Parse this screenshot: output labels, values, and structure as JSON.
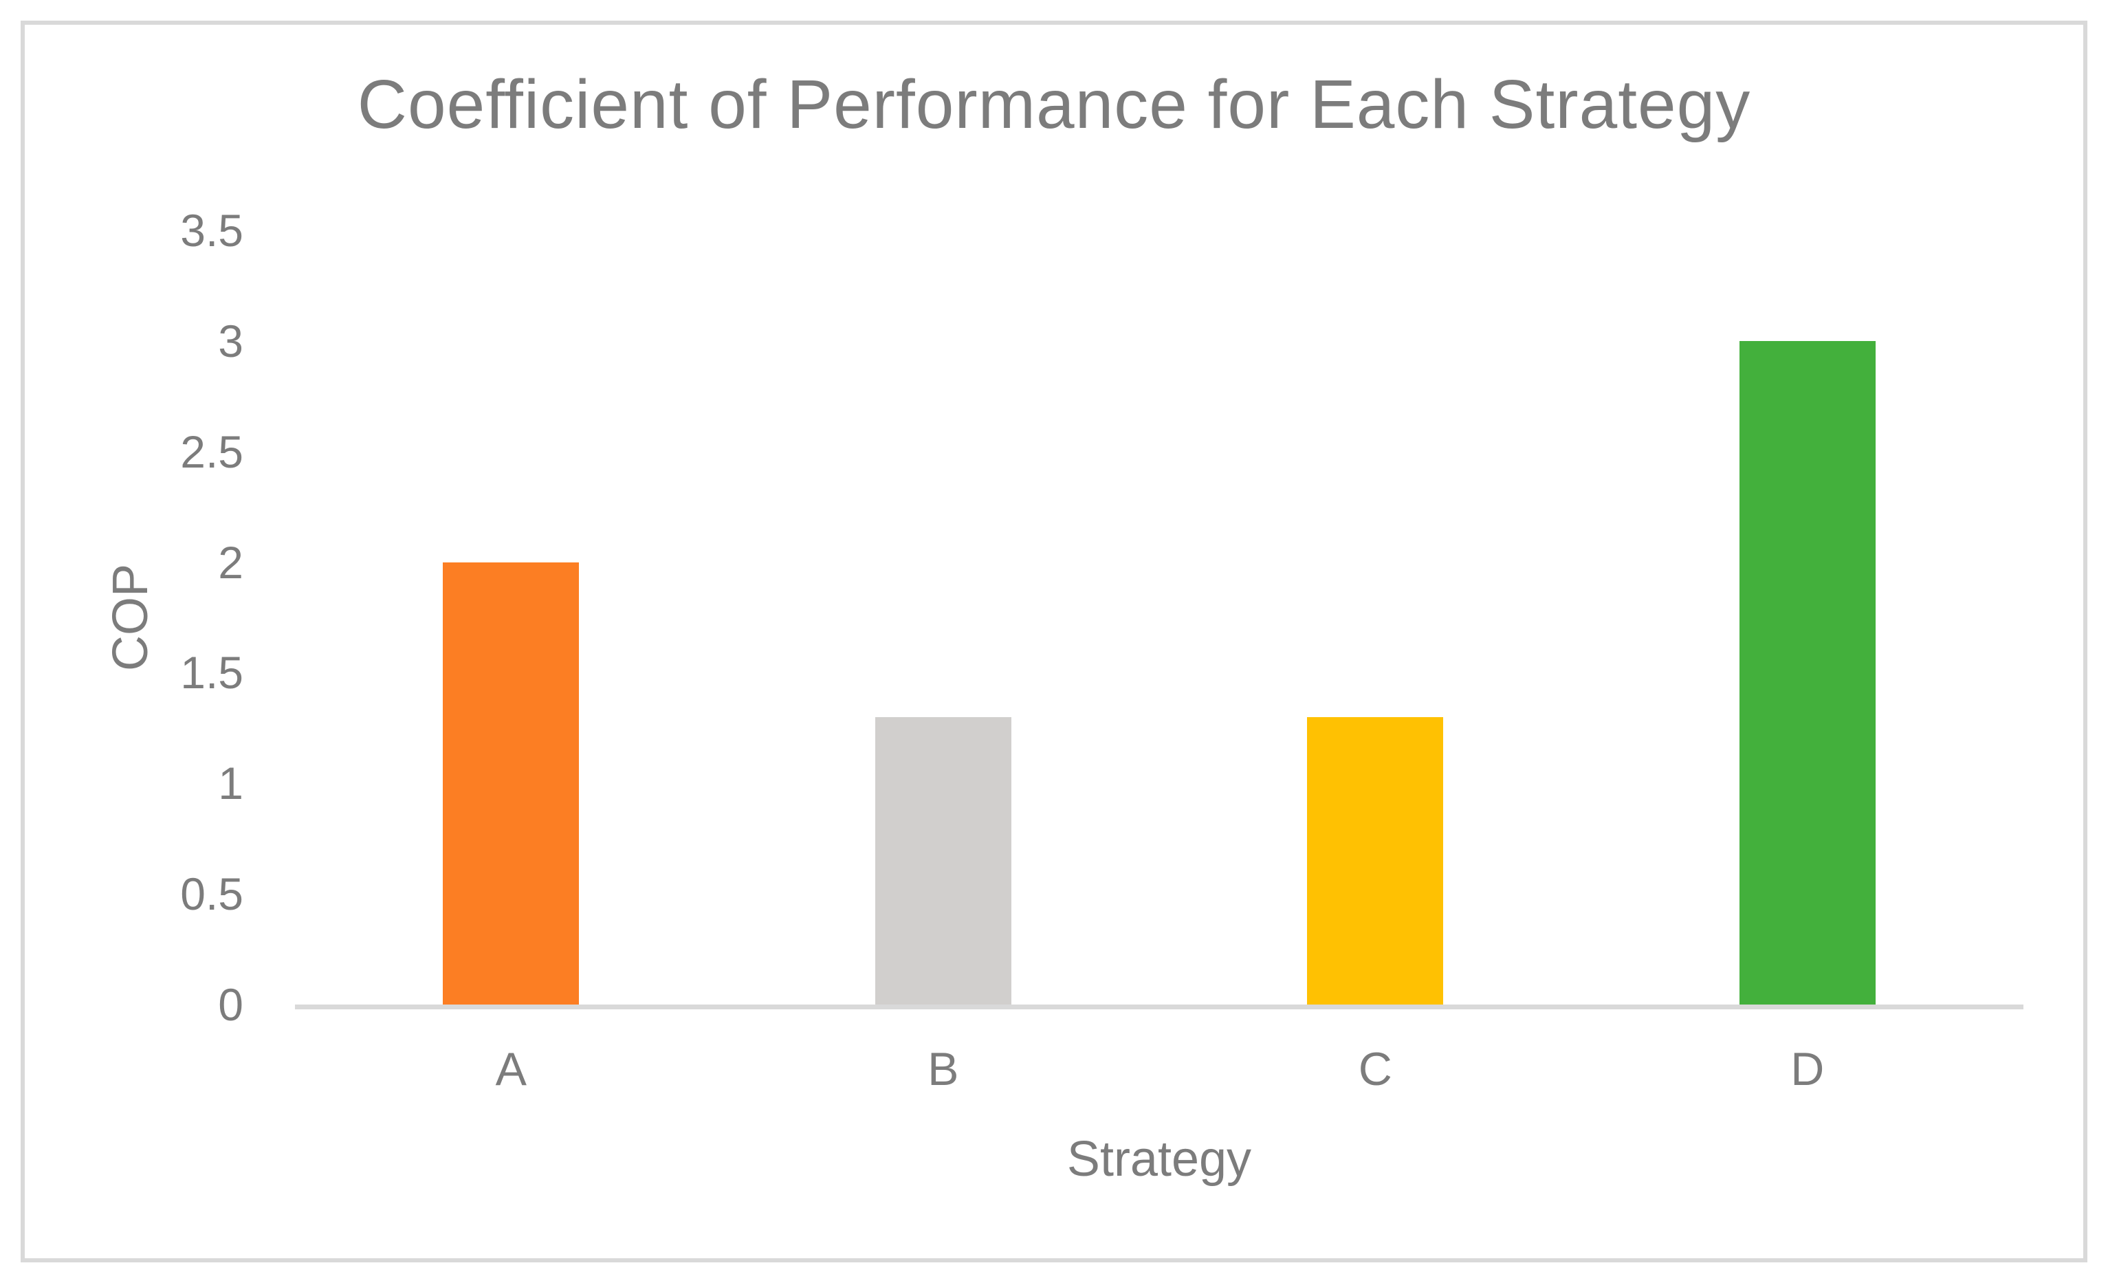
{
  "chart_data": {
    "type": "bar",
    "title": "Coefficient of Performance for Each Strategy",
    "xlabel": "Strategy",
    "ylabel": "COP",
    "categories": [
      "A",
      "B",
      "C",
      "D"
    ],
    "values": [
      2,
      1.3,
      1.3,
      3
    ],
    "bar_colors": [
      "#FC7E23",
      "#D1CFCD",
      "#FFC102",
      "#43B03C"
    ],
    "ylim": [
      0,
      3.5
    ],
    "ytick_step": 0.5,
    "ytick_labels": [
      "0",
      "0.5",
      "1",
      "1.5",
      "2",
      "2.5",
      "3",
      "3.5"
    ],
    "grid": "off",
    "legend": "none"
  },
  "colors": {
    "text": "#7C7C7C",
    "axis_line": "#D9D9D9",
    "frame_border": "#D9D9D9",
    "background": "#FFFFFF"
  }
}
